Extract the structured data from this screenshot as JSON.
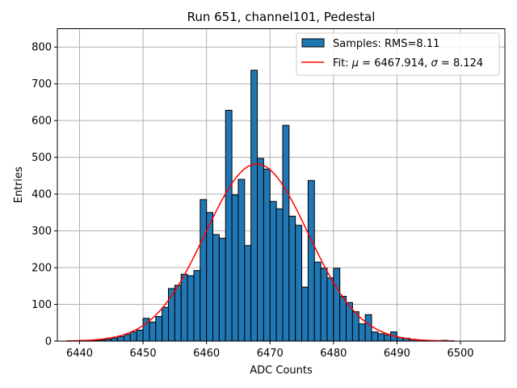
{
  "chart_data": {
    "type": "bar",
    "title": "Run 651, channel101, Pedestal",
    "xlabel": "ADC Counts",
    "ylabel": "Entries",
    "xlim": [
      6436.5,
      6507
    ],
    "ylim": [
      0,
      850
    ],
    "xticks": [
      6440,
      6450,
      6460,
      6470,
      6480,
      6490,
      6500
    ],
    "yticks": [
      0,
      100,
      200,
      300,
      400,
      500,
      600,
      700,
      800
    ],
    "grid": true,
    "legend_position": "top-right",
    "histogram": {
      "name": "Samples: RMS=8.11",
      "color": "#1f77b4",
      "bin_width": 1,
      "bin_left_edges": [
        6438,
        6439,
        6440,
        6441,
        6442,
        6443,
        6444,
        6445,
        6446,
        6447,
        6448,
        6449,
        6450,
        6451,
        6452,
        6453,
        6454,
        6455,
        6456,
        6457,
        6458,
        6459,
        6460,
        6461,
        6462,
        6463,
        6464,
        6465,
        6466,
        6467,
        6468,
        6469,
        6470,
        6471,
        6472,
        6473,
        6474,
        6475,
        6476,
        6477,
        6478,
        6479,
        6480,
        6481,
        6482,
        6483,
        6484,
        6485,
        6486,
        6487,
        6488,
        6489,
        6490,
        6491,
        6492,
        6493,
        6494,
        6495,
        6496,
        6497,
        6498
      ],
      "counts": [
        1,
        1,
        2,
        2,
        2,
        3,
        5,
        8,
        12,
        18,
        25,
        30,
        62,
        52,
        67,
        92,
        143,
        152,
        182,
        178,
        192,
        385,
        350,
        290,
        280,
        628,
        398,
        440,
        260,
        737,
        497,
        468,
        380,
        360,
        587,
        340,
        315,
        147,
        437,
        215,
        198,
        172,
        198,
        122,
        105,
        80,
        47,
        72,
        25,
        20,
        17,
        25,
        10,
        8,
        5,
        3,
        2,
        1,
        1,
        2,
        1
      ]
    },
    "fit": {
      "name_prefix": "Fit: ",
      "mu_symbol": "μ",
      "sigma_symbol": "σ",
      "mu": "6467.914",
      "sigma": "8.124",
      "mu_value": 6467.914,
      "sigma_value": 8.124,
      "amplitude": 482,
      "x_range": [
        6438,
        6499
      ],
      "color": "#ff0000"
    },
    "legend": {
      "hist_label": "Samples: RMS=8.11",
      "fit_label_prefix": "Fit: "
    }
  }
}
